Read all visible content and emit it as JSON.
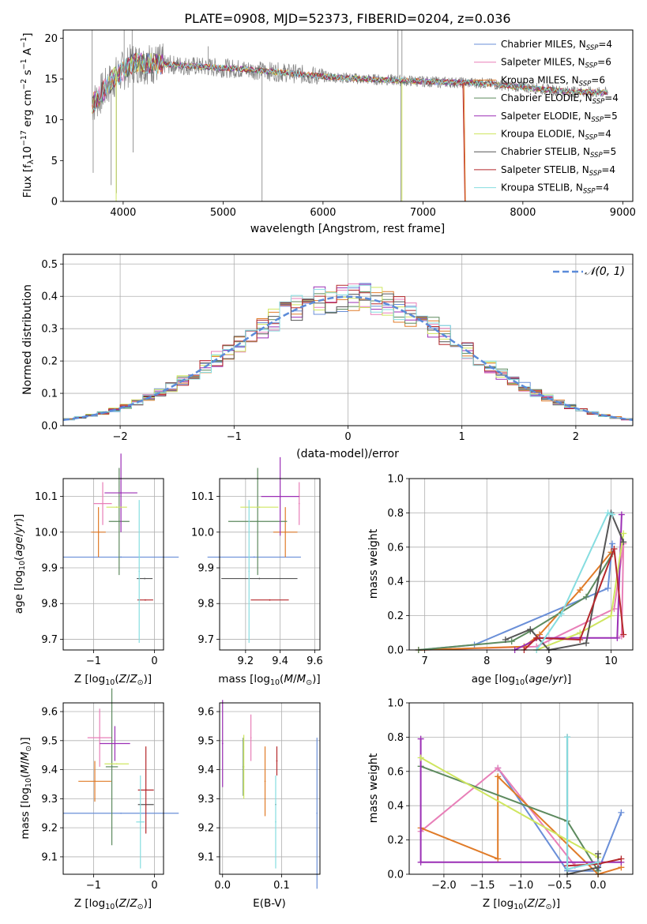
{
  "figure_title": "PLATE=0908, MJD=52373, FIBERID=0204, z=0.036",
  "colors": {
    "Chabrier MILES": "#6a8fd8",
    "Salpeter MILES": "#e87fb8",
    "Kroupa MILES": "#e07b28",
    "Chabrier ELODIE": "#5d8a5e",
    "Salpeter ELODIE": "#9b2fb5",
    "Kroupa ELODIE": "#cfe660",
    "Chabrier STELIB": "#555555",
    "Salpeter STELIB": "#b5282c",
    "Kroupa STELIB": "#86dde0",
    "data": "#808080",
    "normal": "#5b8bd9"
  },
  "chart_data": [
    {
      "type": "line",
      "title": "PLATE=0908, MJD=52373, FIBERID=0204, z=0.036",
      "xlabel": "wavelength [Angstrom, rest frame]",
      "ylabel": "Flux [f_λ10^-17 erg cm^-2 s^-1 A^-1]",
      "xlim": [
        3400,
        9100
      ],
      "ylim": [
        0,
        21
      ],
      "xticks": [
        4000,
        5000,
        6000,
        7000,
        8000,
        9000
      ],
      "yticks": [
        0,
        5,
        10,
        15,
        20
      ],
      "legend_position": "top-right",
      "series": [
        {
          "name": "Chabrier MILES, N_SSP=4"
        },
        {
          "name": "Salpeter MILES, N_SSP=6"
        },
        {
          "name": "Kroupa MILES, N_SSP=6"
        },
        {
          "name": "Chabrier ELODIE, N_SSP=4"
        },
        {
          "name": "Salpeter ELODIE, N_SSP=5"
        },
        {
          "name": "Kroupa ELODIE, N_SSP=4"
        },
        {
          "name": "Chabrier STELIB, N_SSP=5"
        },
        {
          "name": "Salpeter STELIB, N_SSP=4"
        },
        {
          "name": "Kroupa STELIB, N_SSP=4"
        }
      ],
      "spectrum_trend": {
        "x": [
          3700,
          3900,
          4100,
          4400,
          4800,
          5200,
          5600,
          6000,
          6400,
          6800,
          7200,
          7600,
          8000,
          8400,
          8850
        ],
        "y": [
          12,
          15,
          17,
          16.8,
          16.5,
          16.2,
          15.8,
          15.3,
          15,
          14.8,
          14.6,
          14.5,
          14,
          13.5,
          13.3
        ]
      }
    },
    {
      "type": "bar",
      "xlabel": "(data-model)/error",
      "ylabel": "Normed distribution",
      "xlim": [
        -2.5,
        2.5
      ],
      "ylim": [
        0,
        0.53
      ],
      "xticks": [
        -2,
        -1,
        0,
        1,
        2
      ],
      "yticks": [
        0.0,
        0.1,
        0.2,
        0.3,
        0.4,
        0.5
      ],
      "legend": "N(0, 1)",
      "legend_position": "top-right",
      "bin_width": 0.1
    },
    {
      "type": "scatter",
      "xlabel": "Z [log10(Z/Z_sun)]",
      "ylabel": "age  [log10(age/yr)]",
      "xlim": [
        -1.5,
        0.15
      ],
      "ylim": [
        9.67,
        10.15
      ],
      "xticks": [
        -1,
        0
      ],
      "yticks": [
        9.7,
        9.8,
        9.9,
        10.0,
        10.1
      ],
      "points": [
        {
          "series": "Chabrier MILES",
          "x": -0.55,
          "xerr": 0.95,
          "y": 9.93,
          "yerr": 0.0
        },
        {
          "series": "Salpeter MILES",
          "x": -0.85,
          "xerr": 0.15,
          "y": 10.08,
          "yerr": 0.06
        },
        {
          "series": "Kroupa MILES",
          "x": -0.92,
          "xerr": 0.12,
          "y": 10.0,
          "yerr": 0.07
        },
        {
          "series": "Chabrier ELODIE",
          "x": -0.58,
          "xerr": 0.17,
          "y": 10.03,
          "yerr": 0.15
        },
        {
          "series": "Salpeter ELODIE",
          "x": -0.55,
          "xerr": 0.27,
          "y": 10.11,
          "yerr": 0.11
        },
        {
          "series": "Kroupa ELODIE",
          "x": -0.62,
          "xerr": 0.17,
          "y": 10.07,
          "yerr": 0.0
        },
        {
          "series": "Chabrier STELIB",
          "x": -0.16,
          "xerr": 0.13,
          "y": 9.87,
          "yerr": 0.0
        },
        {
          "series": "Salpeter STELIB",
          "x": -0.15,
          "xerr": 0.13,
          "y": 9.81,
          "yerr": 0.0
        },
        {
          "series": "Kroupa STELIB",
          "x": -0.25,
          "xerr": 0.0,
          "y": 9.89,
          "yerr": 0.2
        }
      ]
    },
    {
      "type": "scatter",
      "xlabel": "mass [log10(M/M_sun)]",
      "xlim": [
        9.05,
        9.63
      ],
      "ylim": [
        9.67,
        10.15
      ],
      "xticks": [
        9.2,
        9.4,
        9.6
      ],
      "yticks": [
        9.7,
        9.8,
        9.9,
        10.0,
        10.1
      ],
      "points": [
        {
          "series": "Chabrier MILES",
          "x": 9.25,
          "xerr": 0.27,
          "y": 9.93,
          "yerr": 0.0
        },
        {
          "series": "Salpeter MILES",
          "x": 9.51,
          "xerr": 0.0,
          "y": 10.08,
          "yerr": 0.06
        },
        {
          "series": "Kroupa MILES",
          "x": 9.43,
          "xerr": 0.07,
          "y": 10.0,
          "yerr": 0.07
        },
        {
          "series": "Chabrier ELODIE",
          "x": 9.27,
          "xerr": 0.17,
          "y": 10.03,
          "yerr": 0.15
        },
        {
          "series": "Salpeter ELODIE",
          "x": 9.4,
          "xerr": 0.11,
          "y": 10.1,
          "yerr": 0.11
        },
        {
          "series": "Kroupa ELODIE",
          "x": 9.28,
          "xerr": 0.11,
          "y": 10.07,
          "yerr": 0.0
        },
        {
          "series": "Chabrier STELIB",
          "x": 9.28,
          "xerr": 0.22,
          "y": 9.87,
          "yerr": 0.0
        },
        {
          "series": "Salpeter STELIB",
          "x": 9.34,
          "xerr": 0.11,
          "y": 9.81,
          "yerr": 0.0
        },
        {
          "series": "Kroupa STELIB",
          "x": 9.22,
          "xerr": 0.0,
          "y": 9.89,
          "yerr": 0.2
        }
      ]
    },
    {
      "type": "line",
      "xlabel": "age  [log10(age/yr)]",
      "ylabel": "mass weight",
      "xlim": [
        6.75,
        10.35
      ],
      "ylim": [
        0,
        1.0
      ],
      "xticks": [
        7,
        8,
        9,
        10
      ],
      "yticks": [
        0.0,
        0.2,
        0.4,
        0.6,
        0.8,
        1.0
      ],
      "series": [
        {
          "color_key": "Chabrier MILES",
          "x": [
            6.9,
            7.8,
            9.95,
            10.02
          ],
          "y": [
            0.0,
            0.03,
            0.36,
            0.62
          ]
        },
        {
          "color_key": "Salpeter MILES",
          "x": [
            6.9,
            8.8,
            10.05,
            10.2,
            10.17
          ],
          "y": [
            0.0,
            0.02,
            0.24,
            0.62,
            0.08
          ]
        },
        {
          "color_key": "Kroupa MILES",
          "x": [
            6.9,
            8.6,
            8.85,
            9.5,
            10.0
          ],
          "y": [
            0.0,
            0.02,
            0.09,
            0.35,
            0.57
          ]
        },
        {
          "color_key": "Chabrier ELODIE",
          "x": [
            6.9,
            8.4,
            8.7,
            9.6,
            10.02
          ],
          "y": [
            0.0,
            0.05,
            0.11,
            0.31,
            0.56
          ]
        },
        {
          "color_key": "Salpeter ELODIE",
          "x": [
            8.45,
            8.85,
            10.1,
            10.17
          ],
          "y": [
            0.0,
            0.07,
            0.07,
            0.79
          ]
        },
        {
          "color_key": "Kroupa ELODIE",
          "x": [
            8.8,
            9.5,
            10.0,
            10.2
          ],
          "y": [
            0.0,
            0.1,
            0.2,
            0.68
          ]
        },
        {
          "color_key": "Chabrier STELIB",
          "x": [
            8.3,
            8.7,
            9.0,
            9.6,
            10.0,
            10.2
          ],
          "y": [
            0.06,
            0.12,
            0.0,
            0.04,
            0.8,
            0.63
          ]
        },
        {
          "color_key": "Salpeter STELIB",
          "x": [
            8.6,
            8.8,
            9.5,
            10.05,
            10.2
          ],
          "y": [
            0.0,
            0.07,
            0.06,
            0.59,
            0.09
          ]
        },
        {
          "color_key": "Kroupa STELIB",
          "x": [
            8.8,
            9.2,
            9.95,
            10.02
          ],
          "y": [
            0.0,
            0.21,
            0.8,
            0.79
          ]
        }
      ]
    },
    {
      "type": "scatter",
      "xlabel": "Z [log10(Z/Z_sun)]",
      "ylabel": "mass [log10(M/M_sun)]",
      "xlim": [
        -1.5,
        0.15
      ],
      "ylim": [
        9.04,
        9.63
      ],
      "xticks": [
        -1,
        0
      ],
      "yticks": [
        9.1,
        9.2,
        9.3,
        9.4,
        9.5,
        9.6
      ],
      "points": [
        {
          "series": "Chabrier MILES",
          "x": -0.55,
          "xerr": 0.95,
          "y": 9.25,
          "yerr": 0.0
        },
        {
          "series": "Salpeter MILES",
          "x": -0.9,
          "xerr": 0.2,
          "y": 9.51,
          "yerr": 0.1
        },
        {
          "series": "Kroupa MILES",
          "x": -0.98,
          "xerr": 0.27,
          "y": 9.36,
          "yerr": 0.07
        },
        {
          "series": "Chabrier ELODIE",
          "x": -0.7,
          "xerr": 0.1,
          "y": 9.41,
          "yerr": 0.27
        },
        {
          "series": "Salpeter ELODIE",
          "x": -0.65,
          "xerr": 0.25,
          "y": 9.49,
          "yerr": 0.06
        },
        {
          "series": "Kroupa ELODIE",
          "x": -0.62,
          "xerr": 0.2,
          "y": 9.42,
          "yerr": 0.0
        },
        {
          "series": "Chabrier STELIB",
          "x": -0.14,
          "xerr": 0.13,
          "y": 9.28,
          "yerr": 0.0
        },
        {
          "series": "Salpeter STELIB",
          "x": -0.14,
          "xerr": 0.13,
          "y": 9.33,
          "yerr": 0.15
        },
        {
          "series": "Kroupa STELIB",
          "x": -0.23,
          "xerr": 0.07,
          "y": 9.22,
          "yerr": 0.16
        }
      ]
    },
    {
      "type": "scatter",
      "xlabel": "E(B-V)",
      "xlim": [
        -0.005,
        0.165
      ],
      "ylim": [
        9.04,
        9.63
      ],
      "xticks": [
        0.0,
        0.1
      ],
      "yticks": [
        9.1,
        9.2,
        9.3,
        9.4,
        9.5,
        9.6
      ],
      "points": [
        {
          "series": "Chabrier MILES",
          "x": 0.16,
          "y": 9.25,
          "yerr": 0.26
        },
        {
          "series": "Salpeter MILES",
          "x": 0.048,
          "y": 9.51,
          "yerr": 0.08
        },
        {
          "series": "Kroupa MILES",
          "x": 0.072,
          "y": 9.36,
          "yerr": 0.12
        },
        {
          "series": "Chabrier ELODIE",
          "x": 0.035,
          "y": 9.41,
          "yerr": 0.1
        },
        {
          "series": "Salpeter ELODIE",
          "x": 0.0,
          "y": 9.49,
          "yerr": 0.15
        },
        {
          "series": "Kroupa ELODIE",
          "x": 0.036,
          "y": 9.41,
          "yerr": 0.11
        },
        {
          "series": "Chabrier STELIB",
          "x": 0.09,
          "y": 9.28,
          "yerr": 0.0
        },
        {
          "series": "Salpeter STELIB",
          "x": 0.092,
          "y": 9.43,
          "yerr": 0.05
        },
        {
          "series": "Kroupa STELIB",
          "x": 0.09,
          "y": 9.22,
          "yerr": 0.16
        }
      ]
    },
    {
      "type": "line",
      "xlabel": "Z [log10(Z/Z_sun)]",
      "ylabel": "mass weight",
      "xlim": [
        -2.45,
        0.45
      ],
      "ylim": [
        0,
        1.0
      ],
      "xticks": [
        -2.0,
        -1.5,
        -1.0,
        -0.5,
        0.0
      ],
      "yticks": [
        0.0,
        0.2,
        0.4,
        0.6,
        0.8,
        1.0
      ],
      "series": [
        {
          "color_key": "Chabrier MILES",
          "x": [
            -1.3,
            -0.4,
            0.0,
            0.3
          ],
          "y": [
            0.62,
            0.02,
            0.02,
            0.36
          ]
        },
        {
          "color_key": "Salpeter MILES",
          "x": [
            -2.3,
            -1.3,
            -0.3
          ],
          "y": [
            0.25,
            0.62,
            0.05
          ]
        },
        {
          "color_key": "Kroupa MILES",
          "x": [
            -2.3,
            -1.3,
            -1.3,
            0.0,
            0.3
          ],
          "y": [
            0.27,
            0.09,
            0.57,
            0.0,
            0.04
          ]
        },
        {
          "color_key": "Chabrier ELODIE",
          "x": [
            -2.3,
            -0.4,
            0.0
          ],
          "y": [
            0.63,
            0.31,
            0.02
          ]
        },
        {
          "color_key": "Salpeter ELODIE",
          "x": [
            -2.3,
            -2.3,
            0.3
          ],
          "y": [
            0.79,
            0.07,
            0.07
          ]
        },
        {
          "color_key": "Kroupa ELODIE",
          "x": [
            -2.3,
            -0.4,
            0.0
          ],
          "y": [
            0.68,
            0.2,
            0.1
          ]
        },
        {
          "color_key": "Chabrier STELIB",
          "x": [
            -0.4,
            -0.4,
            0.0,
            0.0
          ],
          "y": [
            0.8,
            0.0,
            0.04,
            0.12
          ]
        },
        {
          "color_key": "Salpeter STELIB",
          "x": [
            -0.4,
            0.0,
            0.3
          ],
          "y": [
            0.05,
            0.06,
            0.09
          ]
        },
        {
          "color_key": "Kroupa STELIB",
          "x": [
            -0.4,
            -0.4,
            0.0
          ],
          "y": [
            0.8,
            0.03,
            0.07
          ]
        }
      ]
    }
  ],
  "tick_labels": {
    "spec_x": [
      "4000",
      "5000",
      "6000",
      "7000",
      "8000",
      "9000"
    ],
    "spec_y": [
      "0",
      "5",
      "10",
      "15",
      "20"
    ],
    "hist_x": [
      "−2",
      "−1",
      "0",
      "1",
      "2"
    ],
    "hist_y": [
      "0.0",
      "0.1",
      "0.2",
      "0.3",
      "0.4",
      "0.5"
    ],
    "age_y": [
      "10.1",
      "10.0",
      "9.9",
      "9.8",
      "9.7"
    ],
    "mass_y": [
      "9.6",
      "9.5",
      "9.4",
      "9.3",
      "9.2",
      "9.1"
    ],
    "z_x": [
      "−1",
      "0"
    ],
    "massx": [
      "9.2",
      "9.4",
      "9.6"
    ],
    "ebv_x": [
      "0.0",
      "0.1"
    ],
    "w_y": [
      "0.0",
      "0.2",
      "0.4",
      "0.6",
      "0.8",
      "1.0"
    ],
    "agew_x": [
      "7",
      "8",
      "9",
      "10"
    ],
    "zw_x": [
      "−2.0",
      "−1.5",
      "−1.0",
      "−0.5",
      "0.0"
    ]
  },
  "legend_entries": [
    {
      "name": "Chabrier MILES, N",
      "sub": "SSP",
      "tail": "=4",
      "color_key": "Chabrier MILES"
    },
    {
      "name": "Salpeter MILES, N",
      "sub": "SSP",
      "tail": "=6",
      "color_key": "Salpeter MILES"
    },
    {
      "name": "Kroupa MILES, N",
      "sub": "SSP",
      "tail": "=6",
      "color_key": "Kroupa MILES"
    },
    {
      "name": "Chabrier ELODIE, N",
      "sub": "SSP",
      "tail": "=4",
      "color_key": "Chabrier ELODIE"
    },
    {
      "name": "Salpeter ELODIE, N",
      "sub": "SSP",
      "tail": "=5",
      "color_key": "Salpeter ELODIE"
    },
    {
      "name": "Kroupa ELODIE, N",
      "sub": "SSP",
      "tail": "=4",
      "color_key": "Kroupa ELODIE"
    },
    {
      "name": "Chabrier STELIB, N",
      "sub": "SSP",
      "tail": "=5",
      "color_key": "Chabrier STELIB"
    },
    {
      "name": "Salpeter STELIB, N",
      "sub": "SSP",
      "tail": "=4",
      "color_key": "Salpeter STELIB"
    },
    {
      "name": "Kroupa STELIB, N",
      "sub": "SSP",
      "tail": "=4",
      "color_key": "Kroupa STELIB"
    }
  ],
  "hist_legend": "𝒩(0, 1)",
  "labels": {
    "spec_x": "wavelength [Angstrom, rest frame]",
    "spec_y": "Flux [f",
    "hist_x": "(data-model)/error",
    "hist_y": "Normed distribution",
    "age_y": "age  [log",
    "z_x": "Z [log",
    "mass_x": "mass [log",
    "mass_y": "mass [log",
    "ebv_x": "E(B-V)",
    "w_y": "mass weight",
    "agew_x": "age  [log"
  }
}
